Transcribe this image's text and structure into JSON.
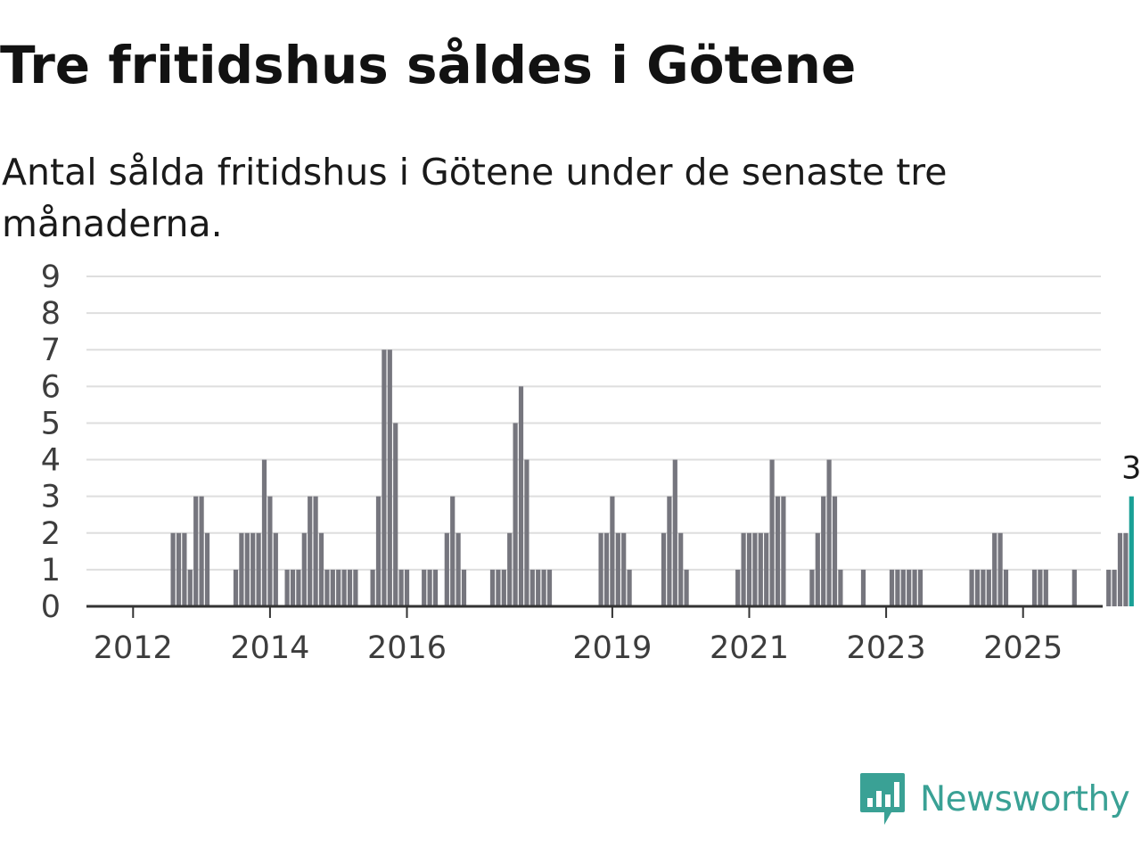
{
  "header": {
    "title": "Tre fritidshus såldes i Götene",
    "subtitle": "Antal sålda fritidshus i Götene under de senaste tre månaderna."
  },
  "brand": {
    "name": "Newsworthy",
    "icon": "newsworthy-logo-icon",
    "color": "#3aa195"
  },
  "colors": {
    "bar": "#76767e",
    "highlight": "#1aa096",
    "grid": "#dedede",
    "axis": "#333333"
  },
  "chart_data": {
    "type": "bar",
    "title": "Tre fritidshus såldes i Götene",
    "subtitle": "Antal sålda fritidshus i Götene under de senaste tre månaderna.",
    "xlabel": "",
    "ylabel": "",
    "ylim": [
      0,
      9
    ],
    "yticks": [
      "0",
      "1",
      "2",
      "3",
      "4",
      "5",
      "6",
      "7",
      "8",
      "9"
    ],
    "xticks": [
      {
        "label": "2012",
        "year": 2012
      },
      {
        "label": "2014",
        "year": 2014
      },
      {
        "label": "2016",
        "year": 2016
      },
      {
        "label": "2019",
        "year": 2019
      },
      {
        "label": "2021",
        "year": 2021
      },
      {
        "label": "2023",
        "year": 2023
      },
      {
        "label": "2025",
        "year": 2025
      }
    ],
    "grid": true,
    "legend": "none",
    "x_start": "2011-06",
    "x_end": "2025-12",
    "values": [
      0,
      0,
      0,
      0,
      0,
      0,
      0,
      0,
      0,
      0,
      0,
      0,
      0,
      0,
      2,
      2,
      2,
      1,
      3,
      3,
      2,
      0,
      0,
      0,
      0,
      1,
      2,
      2,
      2,
      2,
      4,
      3,
      2,
      0,
      1,
      1,
      1,
      2,
      3,
      3,
      2,
      1,
      1,
      1,
      1,
      1,
      1,
      0,
      0,
      1,
      3,
      7,
      7,
      5,
      1,
      1,
      0,
      0,
      1,
      1,
      1,
      0,
      2,
      3,
      2,
      1,
      0,
      0,
      0,
      0,
      1,
      1,
      1,
      2,
      5,
      6,
      4,
      1,
      1,
      1,
      1,
      0,
      0,
      0,
      0,
      0,
      0,
      0,
      0,
      2,
      2,
      3,
      2,
      2,
      1,
      0,
      0,
      0,
      0,
      0,
      2,
      3,
      4,
      2,
      1,
      0,
      0,
      0,
      0,
      0,
      0,
      0,
      0,
      1,
      2,
      2,
      2,
      2,
      2,
      4,
      3,
      3,
      0,
      0,
      0,
      0,
      1,
      2,
      3,
      4,
      3,
      1,
      0,
      0,
      0,
      1,
      0,
      0,
      0,
      0,
      1,
      1,
      1,
      1,
      1,
      1,
      0,
      0,
      0,
      0,
      0,
      0,
      0,
      0,
      1,
      1,
      1,
      1,
      2,
      2,
      1,
      0,
      0,
      0,
      0,
      1,
      1,
      1,
      0,
      0,
      0,
      0,
      1,
      0,
      0,
      0,
      0,
      0,
      1,
      1,
      2,
      2,
      3
    ],
    "highlight_last": true,
    "annotation": "3"
  }
}
